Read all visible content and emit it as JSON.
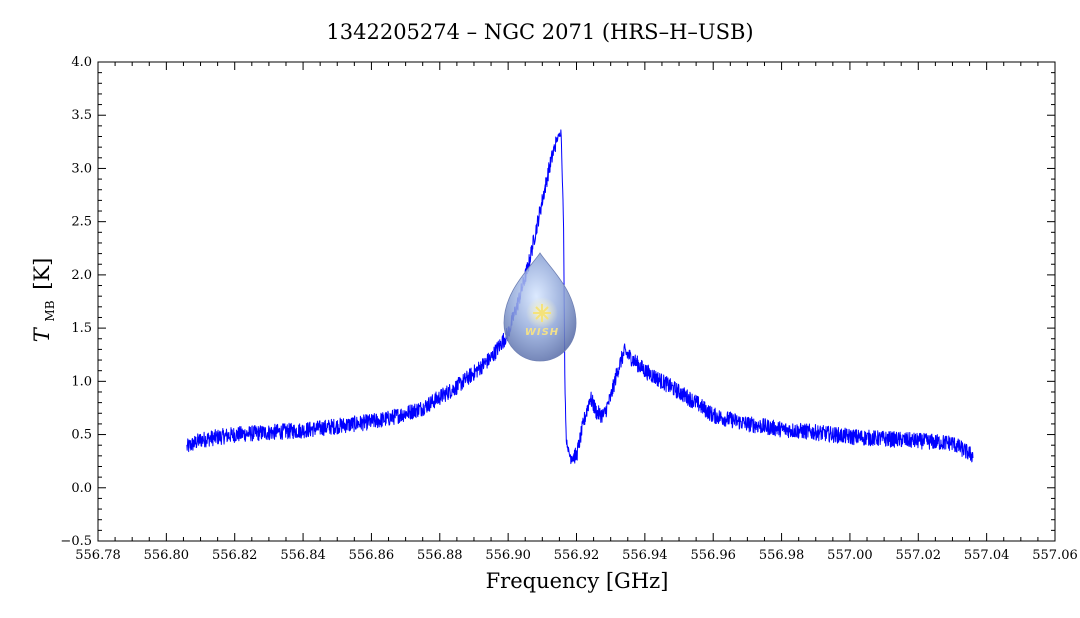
{
  "chart_data": {
    "type": "line",
    "title": "1342205274 – NGC 2071 (HRS–H–USB)",
    "xlabel": "Frequency [GHz]",
    "ylabel_main": "T",
    "ylabel_sub": "MB",
    "ylabel_unit": "[K]",
    "xlim": [
      556.78,
      557.06
    ],
    "ylim": [
      -0.5,
      4.0
    ],
    "x_ticks": [
      556.78,
      556.8,
      556.82,
      556.84,
      556.86,
      556.88,
      556.9,
      556.92,
      556.94,
      556.96,
      556.98,
      557.0,
      557.02,
      557.04,
      557.06
    ],
    "x_tick_labels": [
      "556.78",
      "556.80",
      "556.82",
      "556.84",
      "556.86",
      "556.88",
      "556.90",
      "556.92",
      "556.94",
      "556.96",
      "556.98",
      "557.00",
      "557.02",
      "557.04",
      "557.06"
    ],
    "y_ticks": [
      -0.5,
      0.0,
      0.5,
      1.0,
      1.5,
      2.0,
      2.5,
      3.0,
      3.5,
      4.0
    ],
    "y_tick_labels": [
      "−0.5",
      "0.0",
      "0.5",
      "1.0",
      "1.5",
      "2.0",
      "2.5",
      "3.0",
      "3.5",
      "4.0"
    ],
    "grid": false,
    "series": [
      {
        "color": "#0000ff",
        "x": [
          556.806,
          556.81,
          556.82,
          556.83,
          556.84,
          556.85,
          556.86,
          556.865,
          556.87,
          556.875,
          556.88,
          556.885,
          556.89,
          556.895,
          556.9,
          556.903,
          556.906,
          556.909,
          556.912,
          556.914,
          556.9155,
          556.9162,
          556.9166,
          556.917,
          556.918,
          556.92,
          556.922,
          556.924,
          556.926,
          556.928,
          556.93,
          556.932,
          556.934,
          556.936,
          556.94,
          556.945,
          556.95,
          556.955,
          556.96,
          556.97,
          556.98,
          556.99,
          557.0,
          557.01,
          557.02,
          557.03,
          557.036
        ],
        "y": [
          0.38,
          0.45,
          0.5,
          0.52,
          0.54,
          0.58,
          0.62,
          0.65,
          0.7,
          0.75,
          0.85,
          0.95,
          1.08,
          1.22,
          1.45,
          1.75,
          2.1,
          2.55,
          3.0,
          3.25,
          3.35,
          2.5,
          1.0,
          0.45,
          0.3,
          0.3,
          0.6,
          0.85,
          0.7,
          0.68,
          0.85,
          1.1,
          1.28,
          1.22,
          1.1,
          1.0,
          0.9,
          0.8,
          0.68,
          0.6,
          0.55,
          0.52,
          0.48,
          0.46,
          0.44,
          0.42,
          0.3
        ]
      }
    ]
  },
  "logo": {
    "text": "WISH",
    "colors": {
      "drop": "#7f95c8",
      "star": "#f5e27a"
    }
  }
}
